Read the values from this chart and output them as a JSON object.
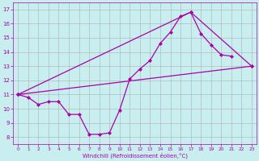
{
  "xlabel": "Windchill (Refroidissement éolien,°C)",
  "background_color": "#c8eef0",
  "grid_color": "#b0b0b0",
  "line_color": "#aa00aa",
  "xlim": [
    -0.5,
    23.5
  ],
  "ylim": [
    7.5,
    17.5
  ],
  "xticks": [
    0,
    1,
    2,
    3,
    4,
    5,
    6,
    7,
    8,
    9,
    10,
    11,
    12,
    13,
    14,
    15,
    16,
    17,
    18,
    19,
    20,
    21,
    22,
    23
  ],
  "yticks": [
    8,
    9,
    10,
    11,
    12,
    13,
    14,
    15,
    16,
    17
  ],
  "line1_x": [
    0,
    1,
    2,
    3,
    4,
    5,
    6,
    7,
    8,
    9,
    10,
    11,
    12,
    13,
    14,
    15,
    16,
    17,
    18,
    19,
    20,
    21
  ],
  "line1_y": [
    11.0,
    10.8,
    10.3,
    10.5,
    10.5,
    9.6,
    9.6,
    8.2,
    8.2,
    8.3,
    9.9,
    12.1,
    12.8,
    13.4,
    14.6,
    15.4,
    16.5,
    16.8,
    15.3,
    14.5,
    13.8,
    13.7
  ],
  "line2_x": [
    0,
    23
  ],
  "line2_y": [
    11.0,
    13.0
  ],
  "line3_x": [
    0,
    17,
    23
  ],
  "line3_y": [
    11.0,
    16.8,
    13.0
  ]
}
